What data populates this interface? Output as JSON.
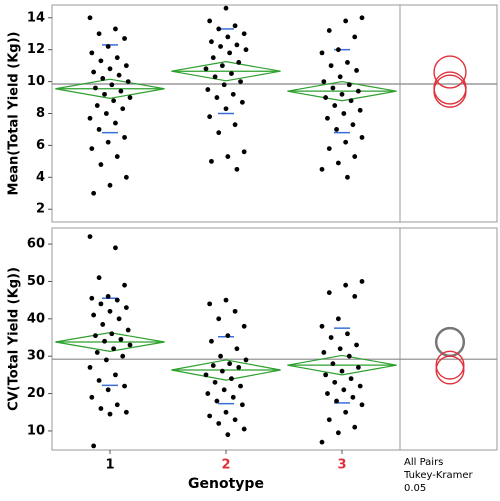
{
  "chart_data": [
    {
      "type": "oneway",
      "ylabel": "Mean(Total Yield (Kg))",
      "ylim": [
        1.2,
        14.8
      ],
      "yticks": [
        2,
        4,
        6,
        8,
        10,
        12,
        14
      ],
      "grand_mean": 9.85,
      "groups": [
        {
          "values": [
            14,
            13.3,
            13,
            12.7,
            12.2,
            11.8,
            11.5,
            11.3,
            11,
            10.8,
            10.6,
            10.4,
            10.2,
            10,
            9.8,
            9.6,
            9.4,
            9.2,
            9,
            8.8,
            8.5,
            8.3,
            8,
            7.7,
            7.4,
            7,
            6.5,
            6.2,
            5.8,
            5.3,
            4.8,
            4,
            3.5,
            3
          ],
          "mean": 9.55,
          "ci": [
            8.95,
            10.15
          ],
          "sd_marks": [
            12.3,
            6.8
          ]
        },
        {
          "values": [
            14.6,
            13.8,
            13.5,
            13.3,
            13,
            12.8,
            12.5,
            12.3,
            12.2,
            12,
            11.8,
            11.5,
            11.2,
            11,
            10.8,
            10.5,
            10.3,
            10,
            9.8,
            9.5,
            9.2,
            9,
            8.7,
            8.3,
            7.8,
            7.3,
            6.8,
            5.6,
            5.3,
            5,
            4.5
          ],
          "mean": 10.65,
          "ci": [
            10.05,
            11.25
          ],
          "sd_marks": [
            13.3,
            8.0
          ]
        },
        {
          "values": [
            14,
            13.8,
            13.2,
            12.8,
            12,
            11.8,
            11.2,
            11,
            10.7,
            10.3,
            10,
            9.8,
            9.6,
            9.4,
            9.2,
            9,
            8.8,
            8.5,
            8.2,
            8,
            7.7,
            7.3,
            7,
            6.5,
            6.2,
            5.8,
            5.3,
            4.9,
            4.5,
            4
          ],
          "mean": 9.4,
          "ci": [
            8.8,
            10.0
          ],
          "sd_marks": [
            12.0,
            6.8
          ]
        }
      ],
      "circles": [
        {
          "center": 10.6,
          "radius": 1.0,
          "color": "#e0303a"
        },
        {
          "center": 9.6,
          "radius": 1.0,
          "color": "#e0303a"
        },
        {
          "center": 9.4,
          "radius": 1.0,
          "color": "#e0303a"
        }
      ]
    },
    {
      "type": "oneway",
      "ylabel": "CV(Total Yield (Kg))",
      "ylim": [
        4.9,
        64.3
      ],
      "yticks": [
        10,
        20,
        30,
        40,
        50,
        60
      ],
      "grand_mean": 29.2,
      "groups": [
        {
          "values": [
            62,
            59,
            51,
            49,
            46,
            45.5,
            45,
            44,
            43,
            42,
            41,
            40,
            38.5,
            37,
            36,
            35.5,
            34.5,
            34,
            33,
            32,
            31,
            30,
            29,
            27,
            25,
            23.5,
            22,
            21,
            19,
            17,
            16,
            15,
            14.5,
            6
          ],
          "mean": 33.8,
          "ci": [
            31.3,
            36.3
          ],
          "sd_marks": [
            45.5,
            22.2
          ]
        },
        {
          "values": [
            45,
            44,
            42,
            40,
            38,
            35.5,
            34,
            32,
            30,
            29,
            28,
            27.5,
            27,
            26,
            25,
            24,
            23,
            22,
            21,
            20,
            19,
            18,
            17,
            15,
            14,
            13,
            12,
            10.5,
            9
          ],
          "mean": 26.3,
          "ci": [
            23.6,
            29.0
          ],
          "sd_marks": [
            35.2,
            17.3
          ]
        },
        {
          "values": [
            50,
            49,
            47,
            46,
            40,
            38,
            36,
            35,
            33,
            32,
            31,
            30,
            28,
            27,
            26,
            25,
            24,
            23,
            22,
            21,
            20,
            19,
            18,
            17,
            15,
            13,
            11,
            9.5,
            7
          ],
          "mean": 27.6,
          "ci": [
            25.0,
            30.2
          ],
          "sd_marks": [
            37.5,
            17.5
          ]
        }
      ],
      "circles": [
        {
          "center": 33.8,
          "radius": 3.7,
          "color": "#777777"
        },
        {
          "center": 26.3,
          "radius": 3.7,
          "color": "#e0303a"
        },
        {
          "center": 27.6,
          "radius": 3.7,
          "color": "#e0303a"
        }
      ],
      "categories": [
        "1",
        "2",
        "3"
      ],
      "category_colors": [
        "#000000",
        "#e0303a",
        "#e0303a"
      ],
      "xlabel": "Genotype",
      "annotations": [
        "All Pairs",
        "Tukey-Kramer",
        " 0.05"
      ]
    }
  ]
}
